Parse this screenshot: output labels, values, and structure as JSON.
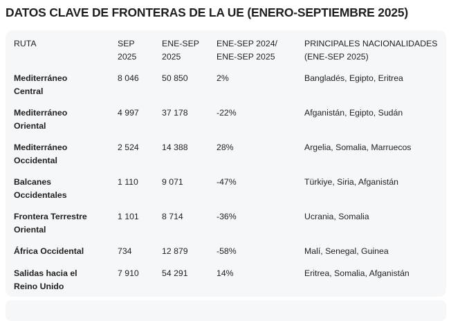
{
  "title": "DATOS CLAVE DE FRONTERAS DE LA UE (ENERO-SEPTIEMBRE 2025)",
  "headers": {
    "ruta": "RUTA",
    "sep_1": "SEP",
    "sep_2": "2025",
    "enesep_1": "ENE-SEP",
    "enesep_2": "2025",
    "ratio_1": "ENE-SEP 2024/",
    "ratio_2": "ENE-SEP 2025",
    "nat_1": "PRINCIPALES NACIONALIDADES",
    "nat_2": "(ENE-SEP 2025)"
  },
  "rows": [
    {
      "ruta_1": "Mediterráneo",
      "ruta_2": "Central",
      "sep": "8 046",
      "enesep": "50 850",
      "change": "2%",
      "nat": "Bangladés, Egipto, Eritrea"
    },
    {
      "ruta_1": "Mediterráneo",
      "ruta_2": "Oriental",
      "sep": "4 997",
      "enesep": "37 178",
      "change": "-22%",
      "nat": "Afganistán, Egipto, Sudán"
    },
    {
      "ruta_1": "Mediterráneo",
      "ruta_2": "Occidental",
      "sep": "2 524",
      "enesep": "14 388",
      "change": "28%",
      "nat": "Argelia, Somalia, Marruecos"
    },
    {
      "ruta_1": "Balcanes",
      "ruta_2": "Occidentales",
      "sep": "1 110",
      "enesep": "9 071",
      "change": "-47%",
      "nat": "Türkiye, Siria, Afganistán"
    },
    {
      "ruta_1": "Frontera Terrestre",
      "ruta_2": "Oriental",
      "sep": "1 101",
      "enesep": "8 714",
      "change": "-36%",
      "nat": "Ucrania, Somalia"
    },
    {
      "ruta_1": "África Occidental",
      "ruta_2": "",
      "sep": "734",
      "enesep": "12 879",
      "change": "-58%",
      "nat": "Malí, Senegal, Guinea"
    },
    {
      "ruta_1": "Salidas hacia el",
      "ruta_2": "Reino Unido",
      "sep": "7 910",
      "enesep": "54 291",
      "change": "14%",
      "nat": "Eritrea, Somalia, Afganistán"
    }
  ]
}
